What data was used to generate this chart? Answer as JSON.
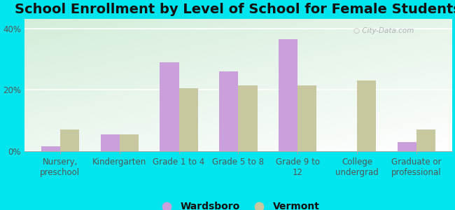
{
  "title": "School Enrollment by Level of School for Female Students",
  "categories": [
    "Nursery,\npreschool",
    "Kindergarten",
    "Grade 1 to 4",
    "Grade 5 to 8",
    "Grade 9 to\n12",
    "College\nundergrad",
    "Graduate or\nprofessional"
  ],
  "wardsboro": [
    1.5,
    5.5,
    29.0,
    26.0,
    36.5,
    0.0,
    3.0
  ],
  "vermont": [
    7.0,
    5.5,
    20.5,
    21.5,
    21.5,
    23.0,
    7.0
  ],
  "wardsboro_color": "#c9a0dc",
  "vermont_color": "#c8c8a0",
  "background_color": "#00e5ee",
  "ylabel_ticks": [
    "0%",
    "20%",
    "40%"
  ],
  "yticks": [
    0,
    20,
    40
  ],
  "ylim": [
    0,
    43
  ],
  "legend_labels": [
    "Wardsboro",
    "Vermont"
  ],
  "title_fontsize": 14,
  "tick_fontsize": 8.5,
  "legend_fontsize": 10,
  "bar_width": 0.32
}
